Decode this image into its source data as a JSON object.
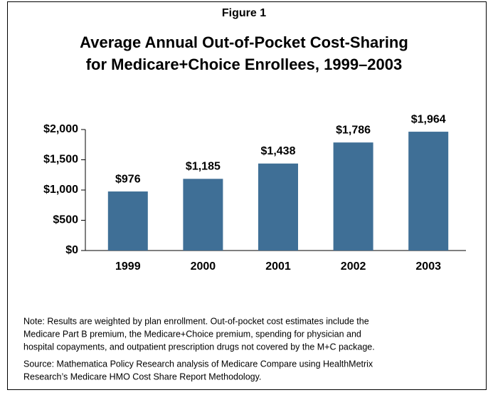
{
  "chart_data": {
    "type": "bar",
    "figure_label": "Figure 1",
    "title": [
      "Average Annual Out-of-Pocket Cost-Sharing",
      "for Medicare+Choice Enrollees, 1999–2003"
    ],
    "categories": [
      "1999",
      "2000",
      "2001",
      "2002",
      "2003"
    ],
    "values": [
      976,
      1185,
      1438,
      1786,
      1964
    ],
    "value_labels": [
      "$976",
      "$1,185",
      "$1,438",
      "$1,786",
      "$1,964"
    ],
    "color": "#3f6f96",
    "ylim": [
      0,
      2000
    ],
    "yticks": [
      {
        "value": 0,
        "label": "$0"
      },
      {
        "value": 500,
        "label": "$500"
      },
      {
        "value": 1000,
        "label": "$1,000"
      },
      {
        "value": 1500,
        "label": "$1,500"
      },
      {
        "value": 2000,
        "label": "$2,000"
      }
    ],
    "grid": false,
    "note": [
      "Note: Results are weighted by plan enrollment. Out-of-pocket cost estimates include the",
      "Medicare Part B premium, the Medicare+Choice premium, spending for physician and",
      "hospital copayments, and outpatient prescription drugs not covered by the M+C package."
    ],
    "source": [
      "Source: Mathematica Policy Research analysis of Medicare Compare using HealthMetrix",
      "Research’s Medicare HMO Cost Share Report Methodology."
    ]
  }
}
